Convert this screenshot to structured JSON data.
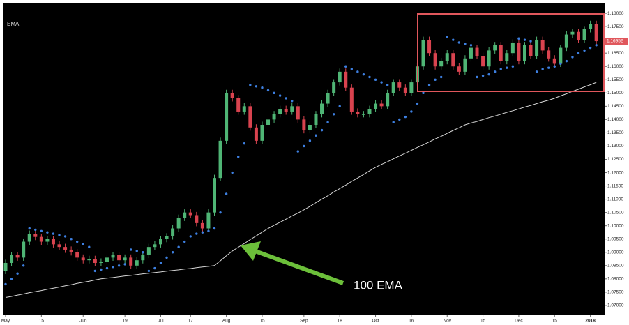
{
  "chart_data": {
    "type": "candlestick",
    "indicator_label": "EMA",
    "annotation": "100 EMA",
    "up_color": "#4fb575",
    "down_color": "#d9434f",
    "open": [
      1.083,
      1.086,
      1.089,
      1.088,
      1.094,
      1.097,
      1.0958,
      1.094,
      1.095,
      1.093,
      1.092,
      1.091,
      1.09,
      1.088,
      1.087,
      1.0875,
      1.086,
      1.0865,
      1.088,
      1.089,
      1.087,
      1.088,
      1.085,
      1.087,
      1.089,
      1.092,
      1.093,
      1.095,
      1.096,
      1.099,
      1.103,
      1.105,
      1.104,
      1.101,
      1.099,
      1.105,
      1.118,
      1.132,
      1.15,
      1.148,
      1.143,
      1.145,
      1.137,
      1.132,
      1.138,
      1.14,
      1.142,
      1.144,
      1.143,
      1.145,
      1.14,
      1.136,
      1.138,
      1.142,
      1.146,
      1.15,
      1.154,
      1.158,
      1.152,
      1.143,
      1.142,
      1.142,
      1.144,
      1.146,
      1.145,
      1.15,
      1.154,
      1.152,
      1.15,
      1.154,
      1.16,
      1.17,
      1.165,
      1.16,
      1.162,
      1.165,
      1.16,
      1.158,
      1.163,
      1.167,
      1.164,
      1.16,
      1.166,
      1.168,
      1.162,
      1.165,
      1.169,
      1.162,
      1.168,
      1.164,
      1.17,
      1.166,
      1.163,
      1.161,
      1.167,
      1.172,
      1.173,
      1.17,
      1.174,
      1.176
    ],
    "high": [
      1.0872,
      1.0902,
      1.0902,
      1.0952,
      1.0982,
      1.0982,
      1.097,
      1.0962,
      1.0962,
      1.0942,
      1.0932,
      1.0922,
      1.0912,
      1.0892,
      1.0887,
      1.0887,
      1.0877,
      1.0892,
      1.0902,
      1.0902,
      1.0892,
      1.0892,
      1.0882,
      1.0902,
      1.0932,
      1.0942,
      1.0962,
      1.0972,
      1.1002,
      1.1042,
      1.1062,
      1.1062,
      1.1052,
      1.1022,
      1.1062,
      1.1192,
      1.1332,
      1.1512,
      1.1512,
      1.1492,
      1.1462,
      1.1462,
      1.1382,
      1.1392,
      1.1412,
      1.1432,
      1.1452,
      1.1452,
      1.1462,
      1.1462,
      1.1412,
      1.1392,
      1.1432,
      1.1472,
      1.1512,
      1.1552,
      1.1592,
      1.1592,
      1.1532,
      1.1442,
      1.1432,
      1.1452,
      1.1472,
      1.1472,
      1.1512,
      1.1552,
      1.1552,
      1.1532,
      1.1552,
      1.1612,
      1.1712,
      1.1712,
      1.1662,
      1.1632,
      1.1662,
      1.1662,
      1.1612,
      1.1642,
      1.1682,
      1.1682,
      1.1652,
      1.1672,
      1.1692,
      1.1692,
      1.1662,
      1.1702,
      1.1702,
      1.1692,
      1.1692,
      1.1712,
      1.1712,
      1.1672,
      1.1642,
      1.1682,
      1.1732,
      1.1742,
      1.1742,
      1.1752,
      1.1772,
      1.1772
    ],
    "low": [
      1.0818,
      1.0848,
      1.0868,
      1.0868,
      1.0928,
      1.0946,
      1.0928,
      1.0928,
      1.0918,
      1.0908,
      1.0898,
      1.0888,
      1.0868,
      1.0858,
      1.0858,
      1.0848,
      1.0848,
      1.0853,
      1.0868,
      1.0858,
      1.0858,
      1.0838,
      1.0838,
      1.0858,
      1.0878,
      1.0908,
      1.0918,
      1.0938,
      1.0948,
      1.0978,
      1.1018,
      1.1028,
      1.0998,
      1.0978,
      1.0978,
      1.1038,
      1.1168,
      1.1308,
      1.1468,
      1.1418,
      1.1418,
      1.1358,
      1.1308,
      1.1308,
      1.1368,
      1.1388,
      1.1408,
      1.1418,
      1.1418,
      1.1388,
      1.1348,
      1.1348,
      1.1368,
      1.1408,
      1.1448,
      1.1488,
      1.1528,
      1.1508,
      1.1418,
      1.1408,
      1.1408,
      1.1408,
      1.1428,
      1.1438,
      1.1438,
      1.1488,
      1.1508,
      1.1488,
      1.1488,
      1.1528,
      1.1588,
      1.1638,
      1.1588,
      1.1588,
      1.1608,
      1.1588,
      1.1568,
      1.1568,
      1.1618,
      1.1628,
      1.1588,
      1.1588,
      1.1648,
      1.1608,
      1.1608,
      1.1638,
      1.1608,
      1.1608,
      1.1628,
      1.1628,
      1.1648,
      1.1618,
      1.1598,
      1.1598,
      1.1658,
      1.1708,
      1.1688,
      1.1688,
      1.1728,
      1.1683
    ],
    "close": [
      1.086,
      1.089,
      1.088,
      1.094,
      1.097,
      1.0958,
      1.094,
      1.095,
      1.093,
      1.092,
      1.091,
      1.09,
      1.088,
      1.087,
      1.0875,
      1.086,
      1.0865,
      1.088,
      1.089,
      1.087,
      1.088,
      1.085,
      1.087,
      1.089,
      1.092,
      1.093,
      1.095,
      1.096,
      1.099,
      1.103,
      1.105,
      1.104,
      1.101,
      1.099,
      1.105,
      1.118,
      1.132,
      1.15,
      1.148,
      1.143,
      1.145,
      1.137,
      1.132,
      1.138,
      1.14,
      1.142,
      1.144,
      1.143,
      1.145,
      1.14,
      1.136,
      1.138,
      1.142,
      1.146,
      1.15,
      1.154,
      1.158,
      1.152,
      1.143,
      1.142,
      1.142,
      1.144,
      1.146,
      1.145,
      1.15,
      1.154,
      1.152,
      1.15,
      1.154,
      1.16,
      1.17,
      1.165,
      1.16,
      1.162,
      1.165,
      1.16,
      1.158,
      1.163,
      1.167,
      1.164,
      1.16,
      1.166,
      1.168,
      1.162,
      1.165,
      1.169,
      1.162,
      1.168,
      1.164,
      1.17,
      1.166,
      1.163,
      1.161,
      1.167,
      1.172,
      1.173,
      1.17,
      1.174,
      1.176,
      1.1695
    ],
    "sar": {
      "color": "#3d7fe0",
      "values": [
        1.078,
        1.08,
        1.082,
        1.085,
        1.099,
        1.0985,
        1.098,
        1.0975,
        1.097,
        1.0965,
        1.096,
        1.095,
        1.094,
        1.093,
        1.092,
        1.083,
        1.0835,
        1.084,
        1.0845,
        1.085,
        1.0855,
        1.091,
        1.0905,
        1.09,
        1.083,
        1.084,
        1.086,
        1.088,
        1.09,
        1.092,
        1.094,
        1.096,
        1.097,
        1.0975,
        1.098,
        1.099,
        1.105,
        1.112,
        1.12,
        1.126,
        1.131,
        1.153,
        1.1525,
        1.152,
        1.151,
        1.15,
        1.149,
        1.148,
        1.147,
        1.128,
        1.13,
        1.132,
        1.134,
        1.136,
        1.139,
        1.142,
        1.145,
        1.16,
        1.159,
        1.158,
        1.157,
        1.156,
        1.155,
        1.154,
        1.153,
        1.139,
        1.14,
        1.141,
        1.143,
        1.146,
        1.15,
        1.153,
        1.155,
        1.156,
        1.171,
        1.17,
        1.169,
        1.1685,
        1.168,
        1.156,
        1.1565,
        1.157,
        1.158,
        1.159,
        1.1595,
        1.16,
        1.1705,
        1.17,
        1.1695,
        1.158,
        1.159,
        1.1595,
        1.16,
        1.161,
        1.162,
        1.1635,
        1.165,
        1.166,
        1.167,
        1.168
      ]
    },
    "ema": {
      "color": "#d6d6d6",
      "values": [
        1.073,
        1.0734,
        1.0739,
        1.0743,
        1.0748,
        1.0752,
        1.0756,
        1.0761,
        1.0765,
        1.0769,
        1.0774,
        1.0778,
        1.0783,
        1.0787,
        1.0791,
        1.0796,
        1.08,
        1.0803,
        1.0805,
        1.0808,
        1.0811,
        1.0813,
        1.0816,
        1.0819,
        1.0821,
        1.0824,
        1.0826,
        1.0829,
        1.0832,
        1.0834,
        1.0837,
        1.0839,
        1.0842,
        1.0845,
        1.0847,
        1.085,
        1.0868,
        1.0887,
        1.0905,
        1.0919,
        1.0933,
        1.0948,
        1.0962,
        1.0976,
        1.099,
        1.1002,
        1.1013,
        1.1025,
        1.1037,
        1.1048,
        1.106,
        1.1073,
        1.1087,
        1.11,
        1.1113,
        1.1127,
        1.114,
        1.1153,
        1.1167,
        1.118,
        1.1193,
        1.1207,
        1.122,
        1.1231,
        1.1241,
        1.1252,
        1.1263,
        1.1273,
        1.1284,
        1.1295,
        1.1305,
        1.1316,
        1.1327,
        1.1337,
        1.1348,
        1.1359,
        1.1369,
        1.138,
        1.1387,
        1.1393,
        1.14,
        1.1407,
        1.1413,
        1.142,
        1.1427,
        1.1433,
        1.144,
        1.1447,
        1.1453,
        1.146,
        1.1467,
        1.1473,
        1.148,
        1.1489,
        1.1497,
        1.1506,
        1.1514,
        1.1523,
        1.1531,
        1.154
      ]
    },
    "last_price": 1.16952,
    "xlim": [
      -0.35,
      100.5
    ],
    "xticks": [
      {
        "value": 0,
        "label": "May"
      },
      {
        "value": 6,
        "label": "15"
      },
      {
        "value": 13,
        "label": "Jun"
      },
      {
        "value": 20,
        "label": "19"
      },
      {
        "value": 26,
        "label": "Jul"
      },
      {
        "value": 31,
        "label": "17"
      },
      {
        "value": 37,
        "label": "Aug"
      },
      {
        "value": 43,
        "label": "15"
      },
      {
        "value": 50,
        "label": "Sep"
      },
      {
        "value": 56,
        "label": "18"
      },
      {
        "value": 62,
        "label": "Oct"
      },
      {
        "value": 68,
        "label": "16"
      },
      {
        "value": 74,
        "label": "Nov"
      },
      {
        "value": 80,
        "label": "15"
      },
      {
        "value": 86,
        "label": "Dec"
      },
      {
        "value": 92,
        "label": "15"
      },
      {
        "value": 98,
        "label": "2018"
      }
    ],
    "ylim": [
      1.0663,
      1.1837
    ],
    "yticks": [
      {
        "value": 1.07,
        "label": "1.07000"
      },
      {
        "value": 1.075,
        "label": "1.07500"
      },
      {
        "value": 1.08,
        "label": "1.08000"
      },
      {
        "value": 1.085,
        "label": "1.08500"
      },
      {
        "value": 1.09,
        "label": "1.09000"
      },
      {
        "value": 1.095,
        "label": "1.09500"
      },
      {
        "value": 1.1,
        "label": "1.10000"
      },
      {
        "value": 1.105,
        "label": "1.10500"
      },
      {
        "value": 1.11,
        "label": "1.11000"
      },
      {
        "value": 1.115,
        "label": "1.11500"
      },
      {
        "value": 1.12,
        "label": "1.12000"
      },
      {
        "value": 1.125,
        "label": "1.12500"
      },
      {
        "value": 1.13,
        "label": "1.13000"
      },
      {
        "value": 1.135,
        "label": "1.13500"
      },
      {
        "value": 1.14,
        "label": "1.14000"
      },
      {
        "value": 1.145,
        "label": "1.14500"
      },
      {
        "value": 1.15,
        "label": "1.15000"
      },
      {
        "value": 1.155,
        "label": "1.15500"
      },
      {
        "value": 1.16,
        "label": "1.16000"
      },
      {
        "value": 1.165,
        "label": "1.16500"
      },
      {
        "value": 1.17,
        "label": "1.17000"
      },
      {
        "value": 1.175,
        "label": "1.17500"
      },
      {
        "value": 1.18,
        "label": "1.18000"
      }
    ]
  }
}
